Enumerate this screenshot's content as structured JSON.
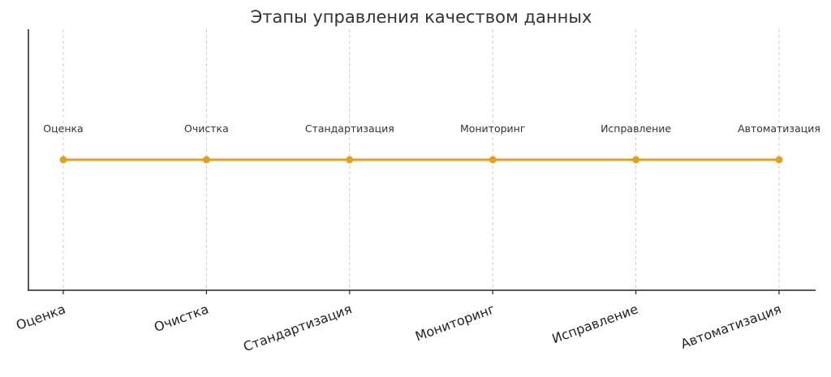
{
  "chart_data": {
    "type": "line",
    "title": "Этапы управления качеством данных",
    "xlabel": "",
    "ylabel": "",
    "categories": [
      "Оценка",
      "Очистка",
      "Стандартизация",
      "Мониторинг",
      "Исправление",
      "Автоматизация"
    ],
    "series": [
      {
        "values": [
          1,
          1,
          1,
          1,
          1,
          1
        ]
      }
    ],
    "annotations": [
      "Оценка",
      "Очистка",
      "Стандартизация",
      "Мониторинг",
      "Исправление",
      "Автоматизация"
    ],
    "ylim": [
      0.5,
      1.5
    ],
    "grid": "vertical dashed",
    "line_color": "#e0a020"
  }
}
